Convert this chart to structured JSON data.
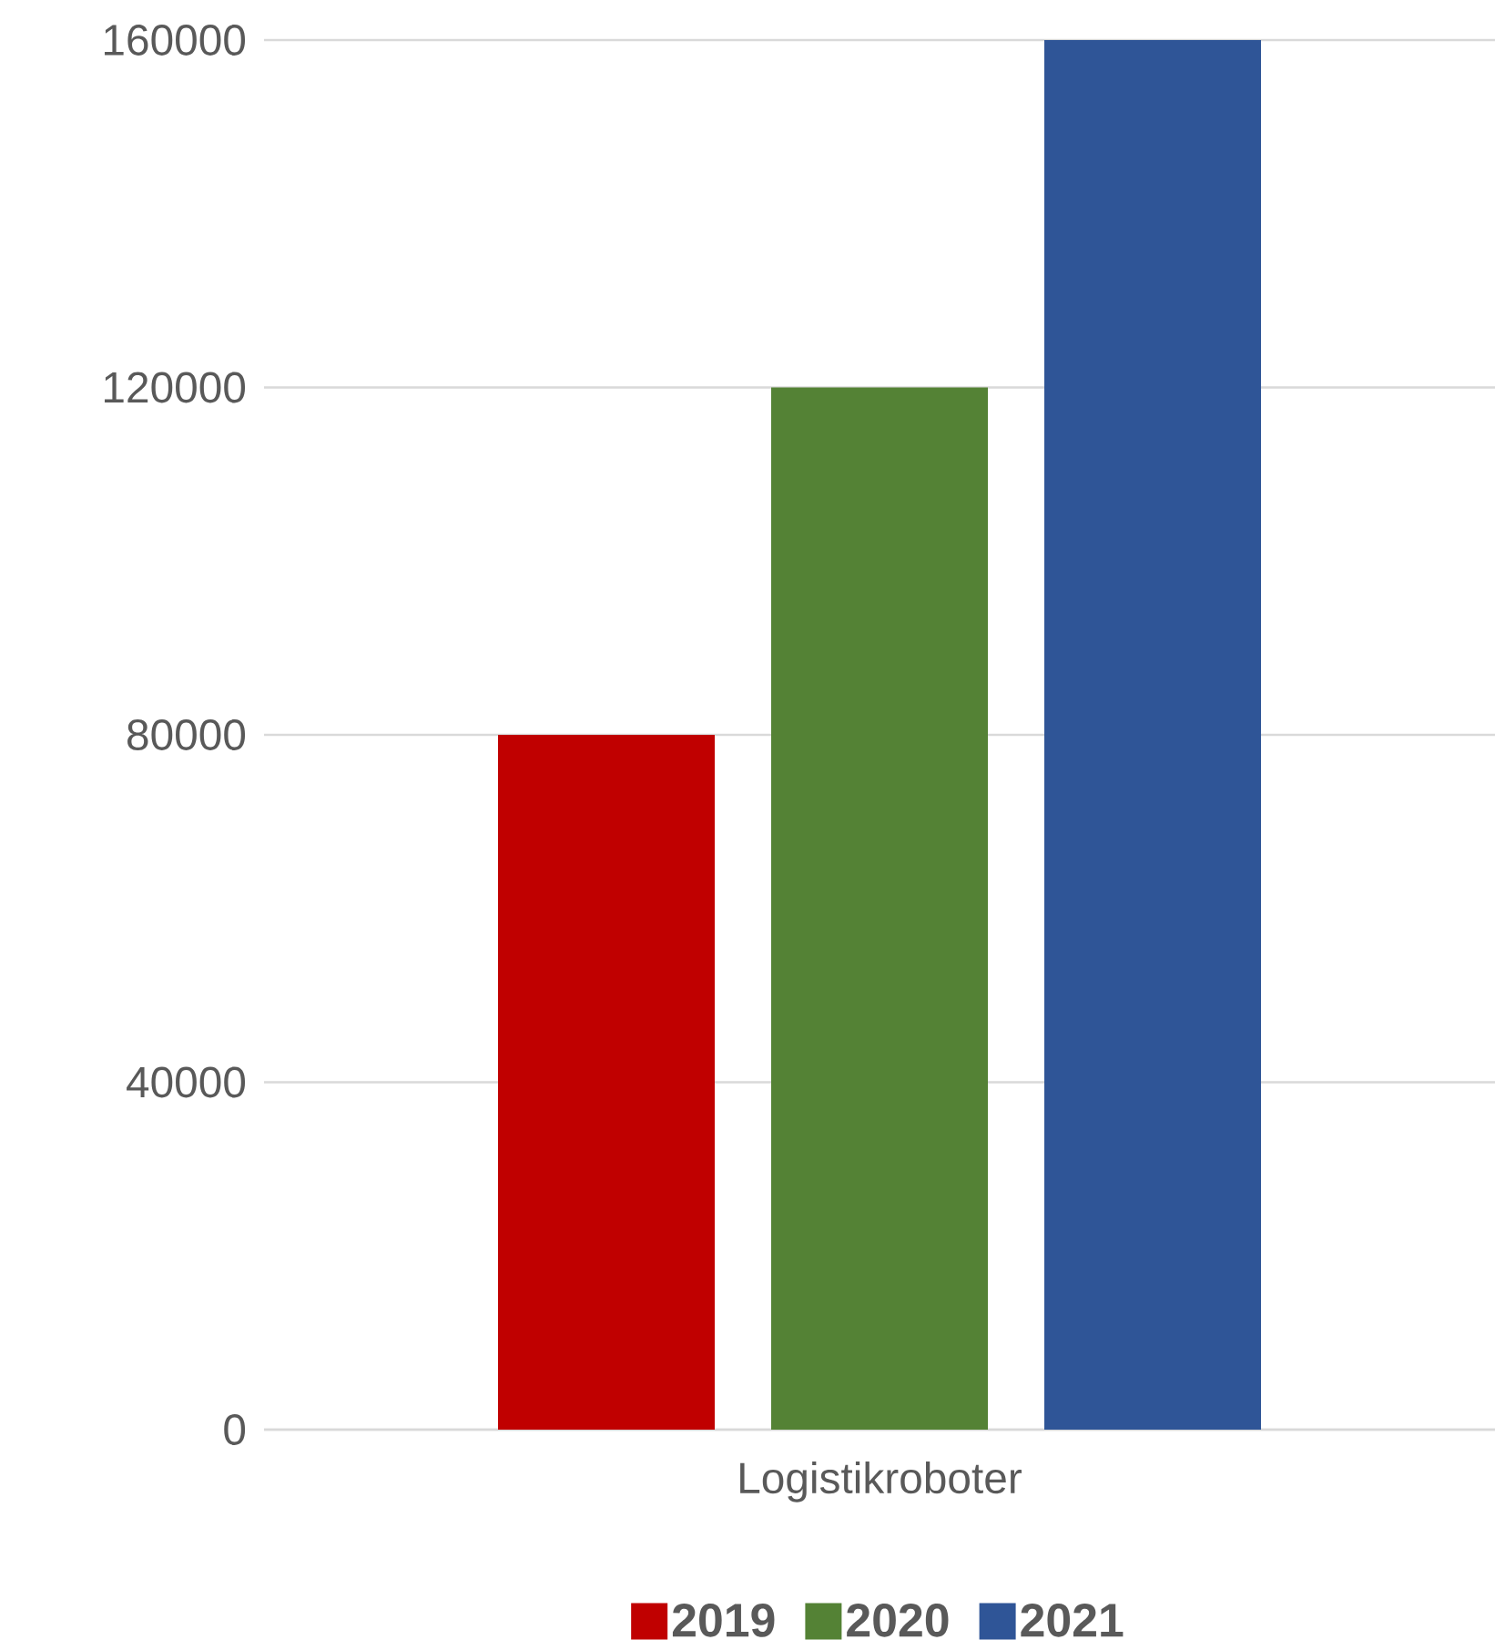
{
  "chart_data": {
    "type": "bar",
    "categories": [
      "Logistikroboter"
    ],
    "series": [
      {
        "name": "2019",
        "color": "#c00000",
        "values": [
          80000
        ]
      },
      {
        "name": "2020",
        "color": "#548235",
        "values": [
          120000
        ]
      },
      {
        "name": "2021",
        "color": "#2f5597",
        "values": [
          160000
        ]
      }
    ],
    "ylim": [
      0,
      160000
    ],
    "yticks": [
      0,
      40000,
      80000,
      120000,
      160000
    ],
    "grid": "y",
    "legend": "bottom"
  }
}
